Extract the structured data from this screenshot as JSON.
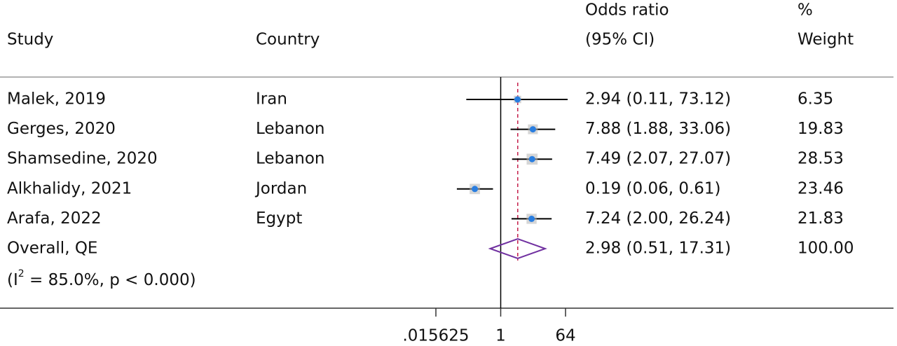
{
  "chart_data": {
    "type": "forest",
    "columns": {
      "study": "Study",
      "country": "Country",
      "effect": [
        "Odds ratio",
        "(95% CI)"
      ],
      "weight": [
        "%",
        "Weight"
      ]
    },
    "studies": [
      {
        "study": "Malek, 2019",
        "country": "Iran",
        "or": 2.94,
        "lower": 0.11,
        "upper": 73.12,
        "label": "2.94 (0.11, 73.12)",
        "weight": "6.35"
      },
      {
        "study": "Gerges, 2020",
        "country": "Lebanon",
        "or": 7.88,
        "lower": 1.88,
        "upper": 33.06,
        "label": "7.88 (1.88, 33.06)",
        "weight": "19.83"
      },
      {
        "study": "Shamsedine, 2020",
        "country": "Lebanon",
        "or": 7.49,
        "lower": 2.07,
        "upper": 27.07,
        "label": "7.49 (2.07, 27.07)",
        "weight": "28.53"
      },
      {
        "study": "Alkhalidy, 2021",
        "country": "Jordan",
        "or": 0.19,
        "lower": 0.06,
        "upper": 0.61,
        "label": "0.19 (0.06, 0.61)",
        "weight": "23.46"
      },
      {
        "study": "Arafa, 2022",
        "country": "Egypt",
        "or": 7.24,
        "lower": 2.0,
        "upper": 26.24,
        "label": "7.24 (2.00, 26.24)",
        "weight": "21.83"
      }
    ],
    "overall": {
      "study": "Overall, QE",
      "or": 2.98,
      "lower": 0.51,
      "upper": 17.31,
      "label": "2.98 (0.51, 17.31)",
      "weight": "100.00",
      "heterogeneity": [
        "(I",
        "2",
        " = 85.0%, p < 0.000)"
      ]
    },
    "xscale": "log",
    "xlim": [
      0.015625,
      64
    ],
    "xticks": [
      {
        "value": 0.015625,
        "label": ".015625"
      },
      1,
      64
    ],
    "null_line": 1,
    "colors": {
      "point": "#2a7ee0",
      "box": "#b5b5b5",
      "ci": "#000000",
      "diamond": "#7030a0",
      "overall_line": "#c41e4a"
    }
  }
}
